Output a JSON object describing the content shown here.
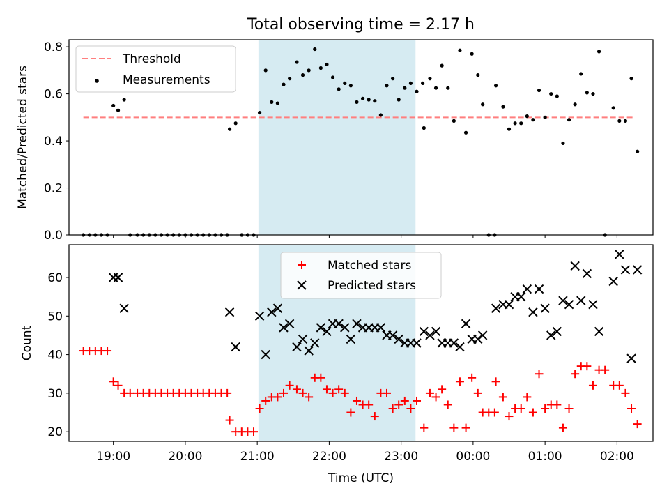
{
  "chart_data": [
    {
      "type": "scatter",
      "title": "Total observing time = 2.17 h",
      "ylabel": "Matched/Predicted stars",
      "xlabel": "",
      "ylim": [
        0,
        0.83
      ],
      "yticks": [
        "0.0",
        "0.2",
        "0.4",
        "0.6",
        "0.8"
      ],
      "grid": false,
      "legend_position": "top-left",
      "threshold": {
        "name": "Threshold",
        "y": 0.5,
        "x_start": "18:35",
        "x_end": "02:15",
        "color": "#ff7f7f"
      },
      "highlight": {
        "x_start": "21:01",
        "x_end": "23:12",
        "color": "#add8e6"
      },
      "series": [
        {
          "name": "Measurements",
          "color": "#000000",
          "points": [
            [
              "18:35",
              0
            ],
            [
              "18:40",
              0
            ],
            [
              "18:45",
              0
            ],
            [
              "18:50",
              0
            ],
            [
              "18:55",
              0
            ],
            [
              "19:00",
              0.55
            ],
            [
              "19:04",
              0.53
            ],
            [
              "19:09",
              0.575
            ],
            [
              "19:14",
              0
            ],
            [
              "19:20",
              0
            ],
            [
              "19:25",
              0
            ],
            [
              "19:30",
              0
            ],
            [
              "19:35",
              0
            ],
            [
              "19:40",
              0
            ],
            [
              "19:45",
              0
            ],
            [
              "19:50",
              0
            ],
            [
              "19:55",
              0
            ],
            [
              "20:00",
              0
            ],
            [
              "20:05",
              0
            ],
            [
              "20:10",
              0
            ],
            [
              "20:15",
              0
            ],
            [
              "20:20",
              0
            ],
            [
              "20:25",
              0
            ],
            [
              "20:30",
              0
            ],
            [
              "20:35",
              0
            ],
            [
              "20:37",
              0.45
            ],
            [
              "20:42",
              0.475
            ],
            [
              "20:47",
              0
            ],
            [
              "20:52",
              0
            ],
            [
              "20:57",
              0
            ],
            [
              "21:02",
              0.52
            ],
            [
              "21:07",
              0.7
            ],
            [
              "21:12",
              0.565
            ],
            [
              "21:17",
              0.56
            ],
            [
              "21:22",
              0.64
            ],
            [
              "21:27",
              0.665
            ],
            [
              "21:33",
              0.735
            ],
            [
              "21:38",
              0.68
            ],
            [
              "21:43",
              0.7
            ],
            [
              "21:48",
              0.79
            ],
            [
              "21:53",
              0.71
            ],
            [
              "21:58",
              0.725
            ],
            [
              "22:03",
              0.67
            ],
            [
              "22:08",
              0.62
            ],
            [
              "22:13",
              0.645
            ],
            [
              "22:18",
              0.635
            ],
            [
              "22:23",
              0.565
            ],
            [
              "22:28",
              0.58
            ],
            [
              "22:33",
              0.575
            ],
            [
              "22:38",
              0.57
            ],
            [
              "22:43",
              0.51
            ],
            [
              "22:48",
              0.635
            ],
            [
              "22:53",
              0.665
            ],
            [
              "22:58",
              0.575
            ],
            [
              "23:03",
              0.625
            ],
            [
              "23:08",
              0.645
            ],
            [
              "23:13",
              0.61
            ],
            [
              "23:18",
              0.645
            ],
            [
              "23:19",
              0.455
            ],
            [
              "23:24",
              0.665
            ],
            [
              "23:29",
              0.625
            ],
            [
              "23:34",
              0.72
            ],
            [
              "23:39",
              0.625
            ],
            [
              "23:44",
              0.485
            ],
            [
              "23:49",
              0.785
            ],
            [
              "23:54",
              0.435
            ],
            [
              "23:59",
              0.77
            ],
            [
              "00:04",
              0.68
            ],
            [
              "00:08",
              0.555
            ],
            [
              "00:13",
              0
            ],
            [
              "00:18",
              0
            ],
            [
              "00:19",
              0.635
            ],
            [
              "00:25",
              0.545
            ],
            [
              "00:30",
              0.45
            ],
            [
              "00:35",
              0.475
            ],
            [
              "00:40",
              0.475
            ],
            [
              "00:45",
              0.505
            ],
            [
              "00:50",
              0.49
            ],
            [
              "00:55",
              0.615
            ],
            [
              "01:00",
              0.5
            ],
            [
              "01:05",
              0.6
            ],
            [
              "01:10",
              0.59
            ],
            [
              "01:15",
              0.39
            ],
            [
              "01:20",
              0.49
            ],
            [
              "01:25",
              0.555
            ],
            [
              "01:30",
              0.685
            ],
            [
              "01:35",
              0.605
            ],
            [
              "01:40",
              0.6
            ],
            [
              "01:45",
              0.78
            ],
            [
              "01:50",
              0
            ],
            [
              "01:57",
              0.54
            ],
            [
              "02:02",
              0.485
            ],
            [
              "02:07",
              0.485
            ],
            [
              "02:12",
              0.665
            ],
            [
              "02:17",
              0.355
            ]
          ]
        }
      ]
    },
    {
      "type": "scatter",
      "title": "",
      "ylabel": "Count",
      "xlabel": "Time (UTC)",
      "ylim": [
        17.5,
        68.5
      ],
      "yticks": [
        "20",
        "30",
        "40",
        "50",
        "60"
      ],
      "xticks": [
        "19:00",
        "20:00",
        "21:00",
        "22:00",
        "23:00",
        "00:00",
        "01:00",
        "02:00"
      ],
      "grid": false,
      "legend_position": "top-center",
      "highlight": {
        "x_start": "21:01",
        "x_end": "23:12",
        "color": "#add8e6"
      },
      "series": [
        {
          "name": "Matched stars",
          "color": "#ff0000",
          "marker": "plus",
          "points": [
            [
              "18:35",
              41
            ],
            [
              "18:40",
              41
            ],
            [
              "18:45",
              41
            ],
            [
              "18:50",
              41
            ],
            [
              "18:55",
              41
            ],
            [
              "19:00",
              33
            ],
            [
              "19:04",
              32
            ],
            [
              "19:09",
              30
            ],
            [
              "19:14",
              30
            ],
            [
              "19:20",
              30
            ],
            [
              "19:25",
              30
            ],
            [
              "19:30",
              30
            ],
            [
              "19:35",
              30
            ],
            [
              "19:40",
              30
            ],
            [
              "19:45",
              30
            ],
            [
              "19:50",
              30
            ],
            [
              "19:55",
              30
            ],
            [
              "20:00",
              30
            ],
            [
              "20:05",
              30
            ],
            [
              "20:10",
              30
            ],
            [
              "20:15",
              30
            ],
            [
              "20:20",
              30
            ],
            [
              "20:25",
              30
            ],
            [
              "20:30",
              30
            ],
            [
              "20:35",
              30
            ],
            [
              "20:37",
              23
            ],
            [
              "20:42",
              20
            ],
            [
              "20:47",
              20
            ],
            [
              "20:52",
              20
            ],
            [
              "20:57",
              20
            ],
            [
              "21:02",
              26
            ],
            [
              "21:07",
              28
            ],
            [
              "21:12",
              29
            ],
            [
              "21:17",
              29
            ],
            [
              "21:22",
              30
            ],
            [
              "21:27",
              32
            ],
            [
              "21:33",
              31
            ],
            [
              "21:38",
              30
            ],
            [
              "21:43",
              29
            ],
            [
              "21:48",
              34
            ],
            [
              "21:53",
              34
            ],
            [
              "21:58",
              31
            ],
            [
              "22:03",
              30
            ],
            [
              "22:08",
              31
            ],
            [
              "22:13",
              30
            ],
            [
              "22:18",
              25
            ],
            [
              "22:23",
              28
            ],
            [
              "22:28",
              27
            ],
            [
              "22:33",
              27
            ],
            [
              "22:38",
              24
            ],
            [
              "22:43",
              30
            ],
            [
              "22:48",
              30
            ],
            [
              "22:53",
              26
            ],
            [
              "22:58",
              27
            ],
            [
              "23:03",
              28
            ],
            [
              "23:08",
              26
            ],
            [
              "23:13",
              28
            ],
            [
              "23:19",
              21
            ],
            [
              "23:24",
              30
            ],
            [
              "23:29",
              29
            ],
            [
              "23:34",
              31
            ],
            [
              "23:39",
              27
            ],
            [
              "23:44",
              21
            ],
            [
              "23:49",
              33
            ],
            [
              "23:54",
              21
            ],
            [
              "23:59",
              34
            ],
            [
              "00:04",
              30
            ],
            [
              "00:08",
              25
            ],
            [
              "00:13",
              25
            ],
            [
              "00:18",
              25
            ],
            [
              "00:19",
              33
            ],
            [
              "00:25",
              29
            ],
            [
              "00:30",
              24
            ],
            [
              "00:35",
              26
            ],
            [
              "00:40",
              26
            ],
            [
              "00:45",
              29
            ],
            [
              "00:50",
              25
            ],
            [
              "00:55",
              35
            ],
            [
              "01:00",
              26
            ],
            [
              "01:05",
              27
            ],
            [
              "01:10",
              27
            ],
            [
              "01:15",
              21
            ],
            [
              "01:20",
              26
            ],
            [
              "01:25",
              35
            ],
            [
              "01:30",
              37
            ],
            [
              "01:35",
              37
            ],
            [
              "01:40",
              32
            ],
            [
              "01:45",
              36
            ],
            [
              "01:50",
              36
            ],
            [
              "01:57",
              32
            ],
            [
              "02:02",
              32
            ],
            [
              "02:07",
              30
            ],
            [
              "02:12",
              26
            ],
            [
              "02:17",
              22
            ]
          ]
        },
        {
          "name": "Predicted stars",
          "color": "#000000",
          "marker": "x",
          "points": [
            [
              "19:00",
              60
            ],
            [
              "19:04",
              60
            ],
            [
              "19:09",
              52
            ],
            [
              "20:37",
              51
            ],
            [
              "20:42",
              42
            ],
            [
              "21:02",
              50
            ],
            [
              "21:07",
              40
            ],
            [
              "21:12",
              51
            ],
            [
              "21:17",
              52
            ],
            [
              "21:22",
              47
            ],
            [
              "21:27",
              48
            ],
            [
              "21:33",
              42
            ],
            [
              "21:38",
              44
            ],
            [
              "21:43",
              41
            ],
            [
              "21:48",
              43
            ],
            [
              "21:53",
              47
            ],
            [
              "21:58",
              46
            ],
            [
              "22:03",
              48
            ],
            [
              "22:08",
              48
            ],
            [
              "22:13",
              47
            ],
            [
              "22:18",
              44
            ],
            [
              "22:23",
              48
            ],
            [
              "22:28",
              47
            ],
            [
              "22:33",
              47
            ],
            [
              "22:38",
              47
            ],
            [
              "22:43",
              47
            ],
            [
              "22:48",
              45
            ],
            [
              "22:53",
              45
            ],
            [
              "22:58",
              44
            ],
            [
              "23:03",
              43
            ],
            [
              "23:08",
              43
            ],
            [
              "23:13",
              43
            ],
            [
              "23:19",
              46
            ],
            [
              "23:24",
              45
            ],
            [
              "23:29",
              46
            ],
            [
              "23:34",
              43
            ],
            [
              "23:39",
              43
            ],
            [
              "23:44",
              43
            ],
            [
              "23:49",
              42
            ],
            [
              "23:54",
              48
            ],
            [
              "23:59",
              44
            ],
            [
              "00:04",
              44
            ],
            [
              "00:08",
              45
            ],
            [
              "00:19",
              52
            ],
            [
              "00:25",
              53
            ],
            [
              "00:30",
              53
            ],
            [
              "00:35",
              55
            ],
            [
              "00:40",
              55
            ],
            [
              "00:45",
              57
            ],
            [
              "00:50",
              51
            ],
            [
              "00:55",
              57
            ],
            [
              "01:00",
              52
            ],
            [
              "01:05",
              45
            ],
            [
              "01:10",
              46
            ],
            [
              "01:15",
              54
            ],
            [
              "01:20",
              53
            ],
            [
              "01:25",
              63
            ],
            [
              "01:30",
              54
            ],
            [
              "01:35",
              61
            ],
            [
              "01:40",
              53
            ],
            [
              "01:45",
              46
            ],
            [
              "01:57",
              59
            ],
            [
              "02:02",
              66
            ],
            [
              "02:07",
              62
            ],
            [
              "02:12",
              39
            ],
            [
              "02:17",
              62
            ]
          ]
        }
      ]
    }
  ]
}
